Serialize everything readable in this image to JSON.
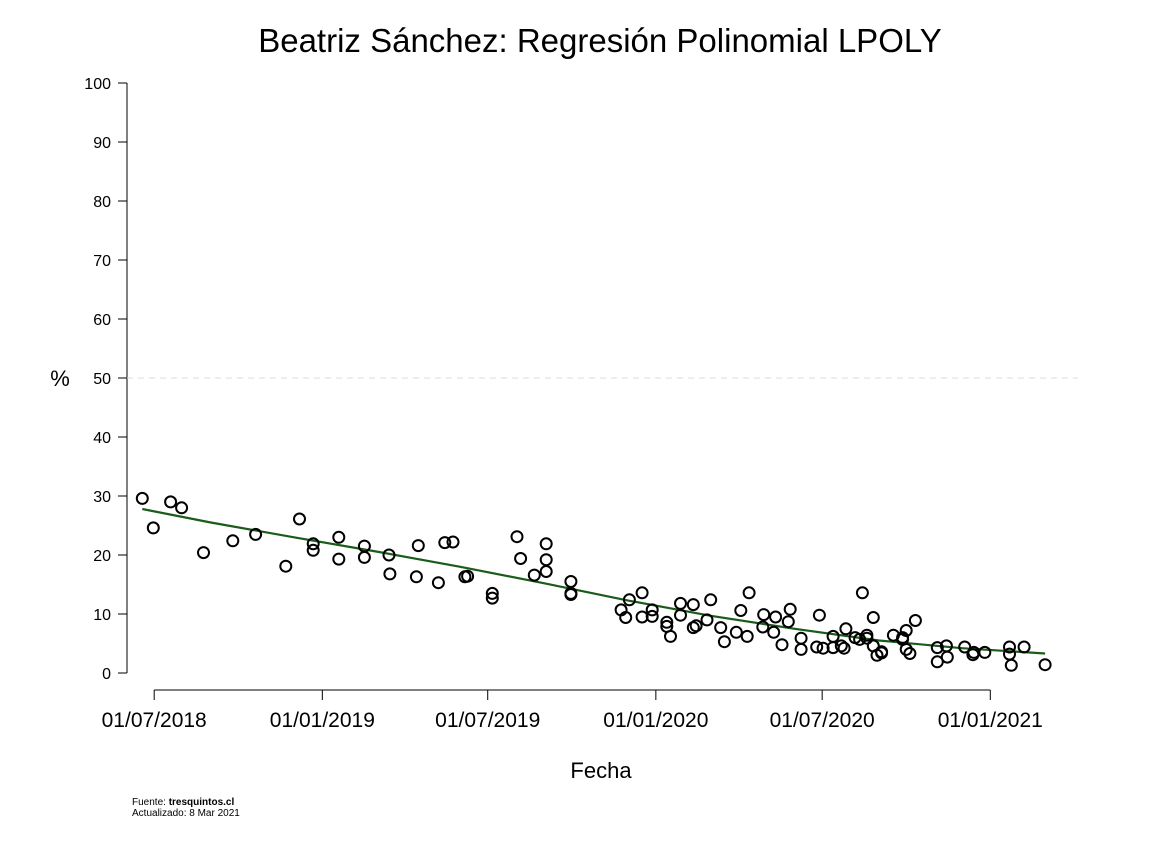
{
  "chart_data": {
    "type": "scatter",
    "title": "Beatriz Sánchez: Regresión Polinomial LPOLY",
    "xlabel": "Fecha",
    "ylabel": "%",
    "ylim": [
      0,
      100
    ],
    "yticks": [
      0,
      10,
      20,
      30,
      40,
      50,
      60,
      70,
      80,
      90,
      100
    ],
    "xlim": [
      "2018-06-10",
      "2021-03-15"
    ],
    "xticks": [
      {
        "date": "2018-07-01",
        "label": "01/07/2018"
      },
      {
        "date": "2019-01-01",
        "label": "01/01/2019"
      },
      {
        "date": "2019-07-01",
        "label": "01/07/2019"
      },
      {
        "date": "2020-01-01",
        "label": "01/01/2020"
      },
      {
        "date": "2020-07-01",
        "label": "01/07/2020"
      },
      {
        "date": "2021-01-01",
        "label": "01/01/2021"
      }
    ],
    "reference_line": {
      "y": 50,
      "style": "dashed",
      "color": "#dddddd"
    },
    "grid": false,
    "points": [
      [
        "2018-06-18",
        29.6
      ],
      [
        "2018-06-30",
        24.6
      ],
      [
        "2018-07-19",
        29.0
      ],
      [
        "2018-07-31",
        28.0
      ],
      [
        "2018-08-24",
        20.4
      ],
      [
        "2018-09-25",
        22.4
      ],
      [
        "2018-10-20",
        23.5
      ],
      [
        "2018-11-22",
        18.1
      ],
      [
        "2018-12-07",
        26.1
      ],
      [
        "2018-12-22",
        21.9
      ],
      [
        "2018-12-22",
        20.8
      ],
      [
        "2019-01-19",
        23.0
      ],
      [
        "2019-01-19",
        19.3
      ],
      [
        "2019-02-16",
        21.5
      ],
      [
        "2019-02-16",
        19.6
      ],
      [
        "2019-03-15",
        20.0
      ],
      [
        "2019-03-16",
        16.8
      ],
      [
        "2019-04-14",
        16.3
      ],
      [
        "2019-04-16",
        21.6
      ],
      [
        "2019-05-08",
        15.3
      ],
      [
        "2019-05-15",
        22.1
      ],
      [
        "2019-05-24",
        22.2
      ],
      [
        "2019-06-06",
        16.3
      ],
      [
        "2019-06-09",
        16.4
      ],
      [
        "2019-07-06",
        13.5
      ],
      [
        "2019-07-06",
        12.7
      ],
      [
        "2019-08-02",
        23.1
      ],
      [
        "2019-08-06",
        19.4
      ],
      [
        "2019-08-21",
        16.6
      ],
      [
        "2019-09-03",
        21.9
      ],
      [
        "2019-09-03",
        19.2
      ],
      [
        "2019-09-03",
        17.2
      ],
      [
        "2019-09-30",
        15.5
      ],
      [
        "2019-09-30",
        13.5
      ],
      [
        "2019-09-30",
        13.3
      ],
      [
        "2019-11-24",
        10.7
      ],
      [
        "2019-11-29",
        9.4
      ],
      [
        "2019-12-03",
        12.4
      ],
      [
        "2019-12-17",
        13.6
      ],
      [
        "2019-12-17",
        9.5
      ],
      [
        "2019-12-28",
        10.7
      ],
      [
        "2019-12-28",
        9.6
      ],
      [
        "2020-01-13",
        8.6
      ],
      [
        "2020-01-13",
        7.9
      ],
      [
        "2020-01-17",
        6.2
      ],
      [
        "2020-01-28",
        11.8
      ],
      [
        "2020-01-28",
        9.8
      ],
      [
        "2020-02-11",
        11.6
      ],
      [
        "2020-02-11",
        7.7
      ],
      [
        "2020-02-14",
        8.0
      ],
      [
        "2020-02-26",
        9.0
      ],
      [
        "2020-03-01",
        12.4
      ],
      [
        "2020-03-12",
        7.7
      ],
      [
        "2020-03-16",
        5.3
      ],
      [
        "2020-03-29",
        6.9
      ],
      [
        "2020-04-03",
        10.6
      ],
      [
        "2020-04-10",
        6.2
      ],
      [
        "2020-04-12",
        13.6
      ],
      [
        "2020-04-27",
        7.8
      ],
      [
        "2020-04-28",
        9.9
      ],
      [
        "2020-05-09",
        6.9
      ],
      [
        "2020-05-11",
        9.5
      ],
      [
        "2020-05-18",
        4.8
      ],
      [
        "2020-05-25",
        8.7
      ],
      [
        "2020-05-27",
        10.8
      ],
      [
        "2020-06-08",
        5.9
      ],
      [
        "2020-06-08",
        4.0
      ],
      [
        "2020-06-25",
        4.4
      ],
      [
        "2020-06-28",
        9.8
      ],
      [
        "2020-07-02",
        4.2
      ],
      [
        "2020-07-13",
        4.3
      ],
      [
        "2020-07-13",
        6.2
      ],
      [
        "2020-07-22",
        4.6
      ],
      [
        "2020-07-25",
        4.2
      ],
      [
        "2020-07-27",
        7.5
      ],
      [
        "2020-08-06",
        6.0
      ],
      [
        "2020-08-11",
        5.7
      ],
      [
        "2020-08-14",
        13.6
      ],
      [
        "2020-08-19",
        5.9
      ],
      [
        "2020-08-19",
        6.4
      ],
      [
        "2020-08-26",
        9.4
      ],
      [
        "2020-08-26",
        4.6
      ],
      [
        "2020-08-30",
        3.0
      ],
      [
        "2020-09-04",
        3.4
      ],
      [
        "2020-09-04",
        3.6
      ],
      [
        "2020-09-17",
        6.4
      ],
      [
        "2020-09-27",
        6.0
      ],
      [
        "2020-09-27",
        5.7
      ],
      [
        "2020-10-01",
        7.2
      ],
      [
        "2020-10-01",
        4.0
      ],
      [
        "2020-10-05",
        3.3
      ],
      [
        "2020-10-11",
        8.9
      ],
      [
        "2020-11-04",
        4.3
      ],
      [
        "2020-11-04",
        1.9
      ],
      [
        "2020-11-14",
        4.6
      ],
      [
        "2020-11-15",
        2.7
      ],
      [
        "2020-12-04",
        4.4
      ],
      [
        "2020-12-13",
        3.1
      ],
      [
        "2020-12-14",
        3.5
      ],
      [
        "2020-12-26",
        3.5
      ],
      [
        "2021-01-22",
        4.4
      ],
      [
        "2021-01-22",
        3.2
      ],
      [
        "2021-01-24",
        1.3
      ],
      [
        "2021-02-07",
        4.4
      ],
      [
        "2021-03-02",
        1.4
      ]
    ],
    "trend": {
      "color": "#1a5c1a",
      "points": [
        [
          "2018-06-18",
          27.8
        ],
        [
          "2018-09-01",
          25.5
        ],
        [
          "2018-12-01",
          23.0
        ],
        [
          "2019-03-01",
          20.6
        ],
        [
          "2019-06-01",
          18.0
        ],
        [
          "2019-09-01",
          15.2
        ],
        [
          "2019-12-01",
          12.3
        ],
        [
          "2020-03-01",
          9.7
        ],
        [
          "2020-06-01",
          7.5
        ],
        [
          "2020-09-01",
          5.5
        ],
        [
          "2020-12-01",
          4.2
        ],
        [
          "2021-03-02",
          3.3
        ]
      ]
    }
  },
  "footer": {
    "source_label": "Fuente: ",
    "source_value": "tresquintos.cl",
    "updated": "Actualizado: 8 Mar 2021"
  }
}
